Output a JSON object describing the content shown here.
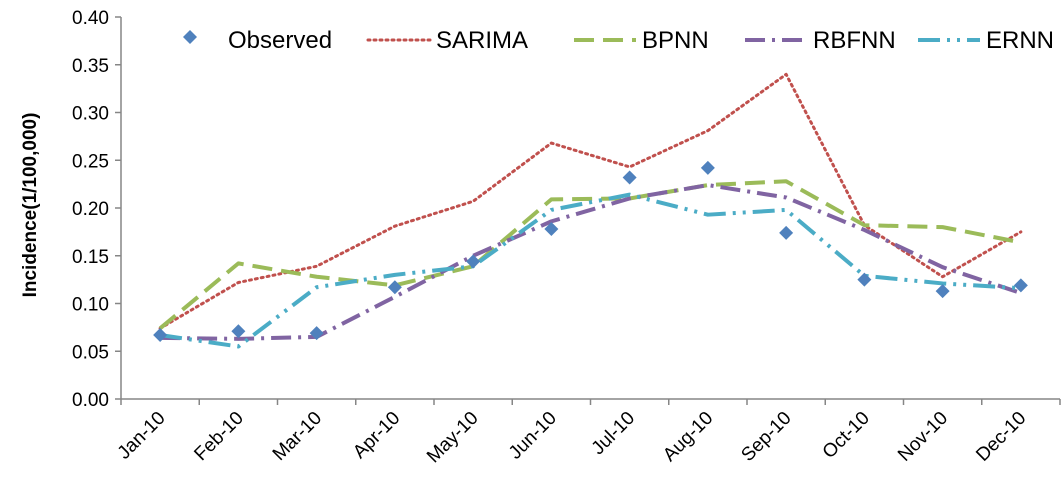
{
  "chart_data": {
    "type": "line",
    "ylabel": "Incidence(1/100,000)",
    "xlabel": "",
    "ylim": [
      0,
      0.4
    ],
    "yticks": [
      "0.00",
      "0.05",
      "0.10",
      "0.15",
      "0.20",
      "0.25",
      "0.30",
      "0.35",
      "0.40"
    ],
    "grid": false,
    "legend_position": "top",
    "categories": [
      "Jan-10",
      "Feb-10",
      "Mar-10",
      "Apr-10",
      "May-10",
      "Jun-10",
      "Jul-10",
      "Aug-10",
      "Sep-10",
      "Oct-10",
      "Nov-10",
      "Dec-10"
    ],
    "series": [
      {
        "name": "Observed",
        "style": "markers",
        "color": "#4F81BD",
        "values": [
          0.067,
          0.071,
          0.069,
          0.117,
          0.144,
          0.178,
          0.232,
          0.242,
          0.174,
          0.125,
          0.113,
          0.119
        ]
      },
      {
        "name": "SARIMA",
        "style": "dotted",
        "color": "#C0504D",
        "values": [
          0.074,
          0.122,
          0.139,
          0.181,
          0.207,
          0.268,
          0.243,
          0.281,
          0.34,
          0.182,
          0.128,
          0.175
        ]
      },
      {
        "name": "BPNN",
        "style": "dashed",
        "color": "#9BBB59",
        "values": [
          0.074,
          0.142,
          0.128,
          0.119,
          0.139,
          0.209,
          0.21,
          0.224,
          0.228,
          0.182,
          0.18,
          0.164
        ]
      },
      {
        "name": "RBFNN",
        "style": "dashdot",
        "color": "#8064A2",
        "values": [
          0.064,
          0.063,
          0.065,
          0.107,
          0.15,
          0.186,
          0.21,
          0.224,
          0.211,
          0.177,
          0.138,
          0.111
        ]
      },
      {
        "name": "ERNN",
        "style": "dashdotdot",
        "color": "#4BACC6",
        "values": [
          0.067,
          0.055,
          0.117,
          0.13,
          0.139,
          0.198,
          0.214,
          0.193,
          0.198,
          0.129,
          0.121,
          0.116
        ]
      }
    ]
  }
}
